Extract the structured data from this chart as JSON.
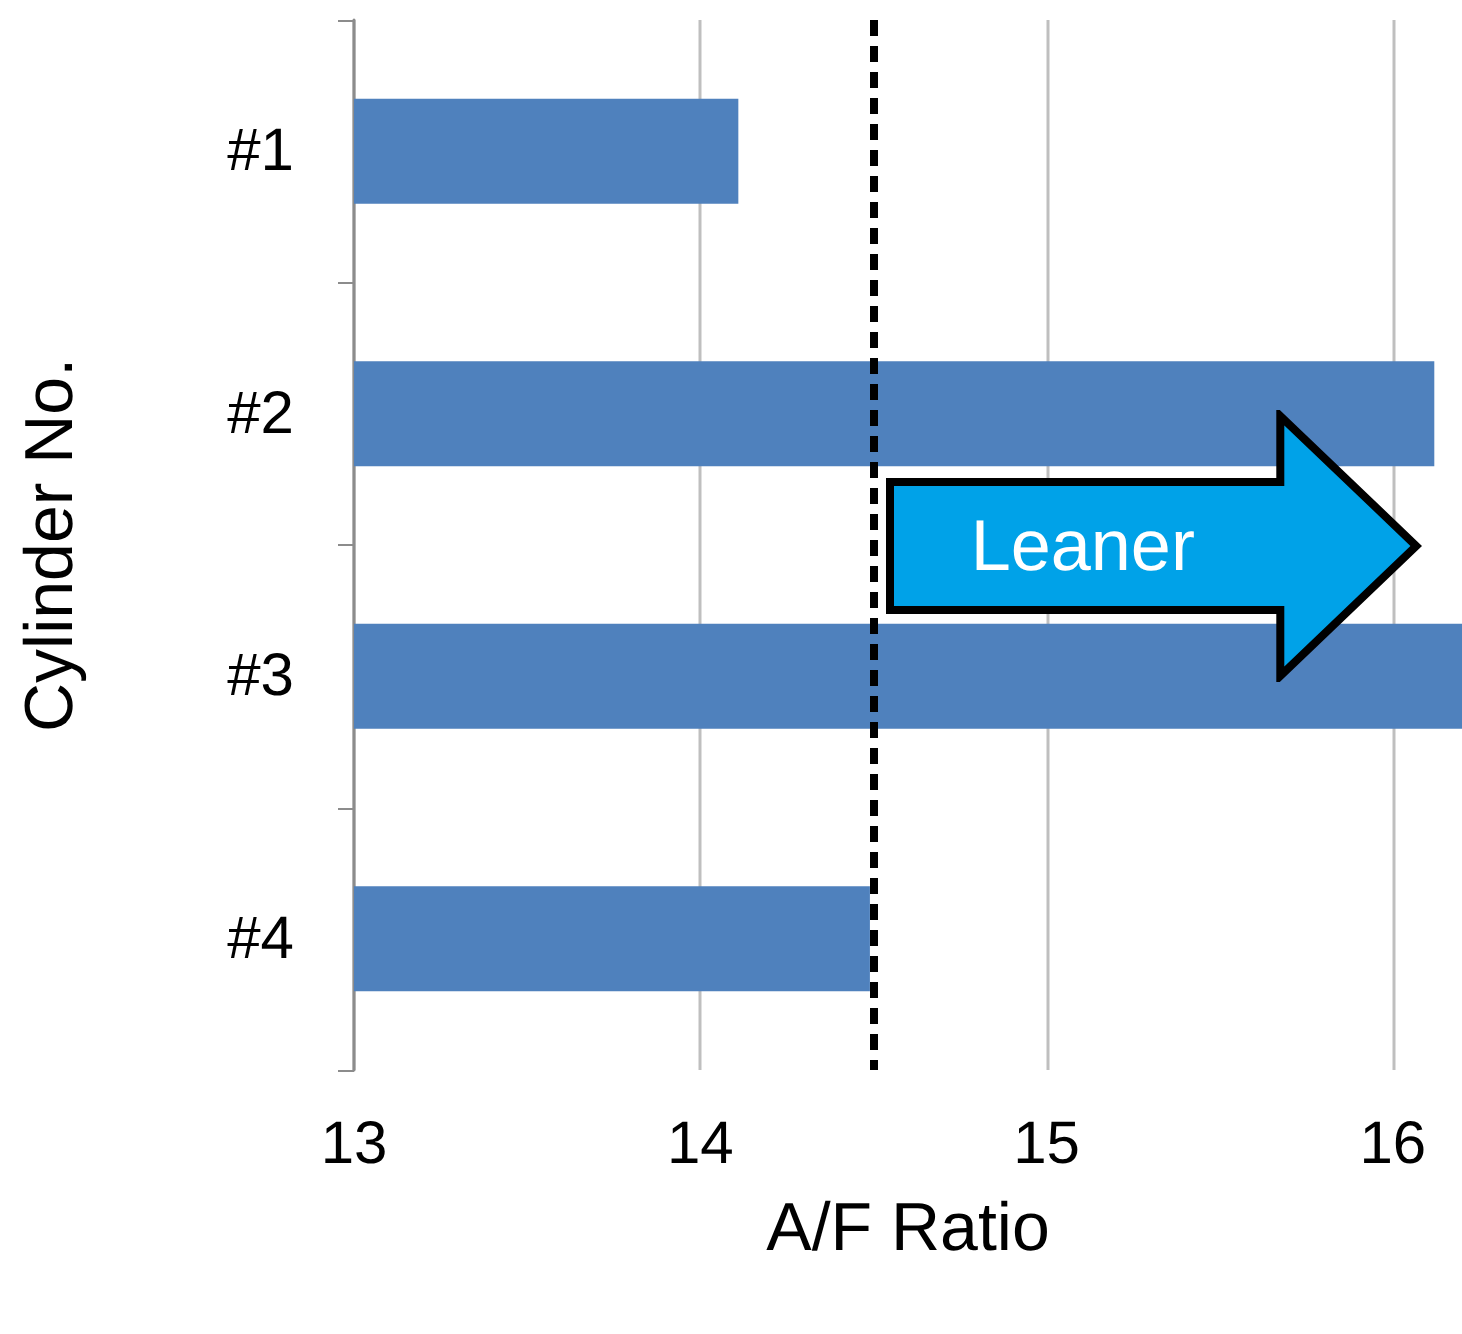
{
  "chart_data": {
    "type": "bar",
    "orientation": "horizontal",
    "xlabel": "A/F Ratio",
    "ylabel": "Cylinder No.",
    "categories": [
      "#1",
      "#2",
      "#3",
      "#4"
    ],
    "values": [
      14.11,
      16.12,
      16.2,
      14.49
    ],
    "color": "#4f81bd",
    "xlim": [
      13,
      16.2
    ],
    "xticks": [
      13,
      14,
      15,
      16
    ],
    "grid": "x",
    "ref_lines": [
      {
        "axis": "x",
        "value": 14.5,
        "color": "#000000",
        "line_style": "dashed"
      }
    ],
    "annotations": [
      "Leaner"
    ]
  }
}
